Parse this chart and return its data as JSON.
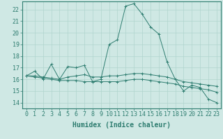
{
  "title": "",
  "xlabel": "Humidex (Indice chaleur)",
  "ylabel": "",
  "xlim": [
    -0.5,
    23.5
  ],
  "ylim": [
    13.5,
    22.7
  ],
  "xticks": [
    0,
    1,
    2,
    3,
    4,
    5,
    6,
    7,
    8,
    9,
    10,
    11,
    12,
    13,
    14,
    15,
    16,
    17,
    18,
    19,
    20,
    21,
    22,
    23
  ],
  "yticks": [
    14,
    15,
    16,
    17,
    18,
    19,
    20,
    21,
    22
  ],
  "background_color": "#cfe8e4",
  "grid_color": "#b0d4ce",
  "line_color": "#2e7d70",
  "series": [
    [
      16.3,
      16.7,
      16.0,
      17.3,
      16.0,
      17.1,
      17.0,
      17.2,
      15.8,
      16.0,
      19.0,
      19.4,
      22.3,
      22.5,
      21.6,
      20.5,
      19.9,
      17.5,
      16.0,
      15.0,
      15.5,
      15.3,
      14.3,
      14.0
    ],
    [
      16.3,
      16.3,
      16.2,
      16.1,
      16.0,
      16.2,
      16.3,
      16.4,
      16.2,
      16.2,
      16.3,
      16.3,
      16.4,
      16.5,
      16.5,
      16.4,
      16.3,
      16.2,
      16.0,
      15.8,
      15.7,
      15.6,
      15.5,
      15.4
    ],
    [
      16.3,
      16.2,
      16.1,
      16.0,
      15.9,
      15.9,
      15.9,
      15.8,
      15.8,
      15.8,
      15.8,
      15.8,
      15.9,
      16.0,
      16.0,
      15.9,
      15.8,
      15.7,
      15.6,
      15.4,
      15.3,
      15.2,
      15.1,
      14.9
    ]
  ],
  "fontsize": 6,
  "xlabel_fontsize": 7
}
